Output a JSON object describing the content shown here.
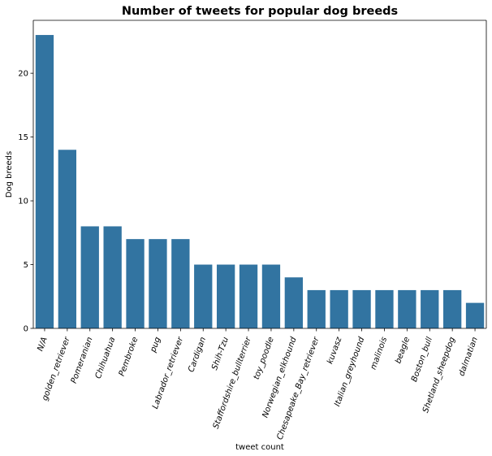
{
  "chart_data": {
    "type": "bar",
    "title": "Number of tweets for popular dog breeds",
    "xlabel": "tweet count",
    "ylabel": "Dog breeds",
    "categories": [
      "N/A",
      "golden_retriever",
      "Pomeranian",
      "Chihuahua",
      "Pembroke",
      "pug",
      "Labrador_retriever",
      "Cardigan",
      "Shih-Tzu",
      "Staffordshire_bullterrier",
      "toy_poodle",
      "Norwegian_elkhound",
      "Chesapeake_Bay_retriever",
      "kuvasz",
      "Italian_greyhound",
      "malinois",
      "beagle",
      "Boston_bull",
      "Shetland_sheepdog",
      "dalmatian"
    ],
    "values": [
      23,
      14,
      8,
      8,
      7,
      7,
      7,
      5,
      5,
      5,
      5,
      4,
      3,
      3,
      3,
      3,
      3,
      3,
      3,
      2
    ],
    "ylim": [
      0,
      24.15
    ],
    "yticks": [
      0,
      5,
      10,
      15,
      20
    ],
    "grid": false,
    "bar_color": "#3274a1",
    "xtick_rotation": 70
  }
}
